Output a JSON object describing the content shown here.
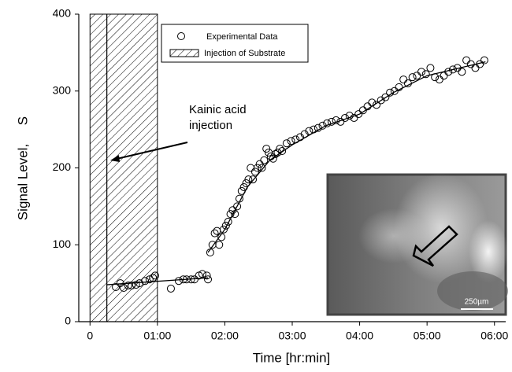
{
  "chart_data": {
    "type": "scatter",
    "xlabel": "Time [hr:min]",
    "ylabel": "Signal Level,     S",
    "xlim": [
      -10,
      370
    ],
    "ylim": [
      0,
      400
    ],
    "xticks": [
      0,
      {
        "value": 60,
        "label": "01:00"
      },
      {
        "value": 120,
        "label": "02:00"
      },
      {
        "value": 180,
        "label": "03:00"
      },
      {
        "value": 240,
        "label": "04:00"
      },
      {
        "value": 300,
        "label": "05:00"
      },
      {
        "value": 360,
        "label": "06:00"
      }
    ],
    "yticks": [
      0,
      100,
      200,
      300,
      400
    ],
    "series": [
      {
        "name": "Experimental Data",
        "color": "#000000",
        "x": [
          23,
          27,
          30,
          34,
          37,
          41,
          44,
          49,
          53,
          56,
          58,
          72,
          79,
          83,
          86,
          90,
          93,
          97,
          100,
          104,
          105,
          107,
          109,
          111,
          113,
          115,
          117,
          119,
          121,
          123,
          125,
          127,
          129,
          131,
          133,
          135,
          137,
          139,
          141,
          143,
          145,
          147,
          149,
          151,
          153,
          155,
          157,
          159,
          161,
          163,
          165,
          167,
          169,
          171,
          175,
          179,
          183,
          187,
          191,
          195,
          199,
          203,
          207,
          211,
          215,
          219,
          223,
          227,
          231,
          235,
          239,
          243,
          247,
          251,
          255,
          259,
          263,
          267,
          271,
          275,
          279,
          283,
          287,
          291,
          295,
          299,
          303,
          307,
          311,
          315,
          319,
          323,
          327,
          331,
          335,
          339,
          343,
          347,
          351
        ],
        "values": [
          45,
          50,
          44,
          47,
          47,
          48,
          50,
          53,
          55,
          57,
          60,
          43,
          53,
          55,
          55,
          55,
          55,
          60,
          62,
          60,
          55,
          90,
          100,
          115,
          118,
          100,
          110,
          120,
          125,
          130,
          140,
          145,
          140,
          150,
          160,
          170,
          175,
          180,
          185,
          200,
          185,
          195,
          200,
          205,
          200,
          210,
          225,
          220,
          215,
          212,
          218,
          220,
          225,
          222,
          232,
          235,
          237,
          240,
          244,
          248,
          250,
          252,
          255,
          258,
          260,
          262,
          260,
          265,
          268,
          265,
          270,
          275,
          280,
          285,
          282,
          288,
          292,
          298,
          300,
          305,
          315,
          310,
          318,
          320,
          325,
          322,
          330,
          318,
          315,
          320,
          325,
          328,
          330,
          325,
          340,
          335,
          330,
          335,
          340
        ]
      }
    ],
    "fit_lines": [
      {
        "x": [
          15,
          105
        ],
        "values": [
          48,
          57
        ]
      },
      {
        "x": [
          105,
          120,
          140,
          160,
          180,
          210,
          240,
          270,
          300,
          352
        ],
        "values": [
          90,
          120,
          175,
          210,
          230,
          255,
          270,
          298,
          320,
          338
        ]
      }
    ],
    "shaded_name": "Injection of Substrate",
    "shaded_regions": [
      {
        "x": [
          0,
          15
        ]
      },
      {
        "x": [
          15,
          60
        ]
      }
    ],
    "annotation": [
      "Kainic acid",
      "injection"
    ],
    "inset_scale_label": "250µm"
  }
}
